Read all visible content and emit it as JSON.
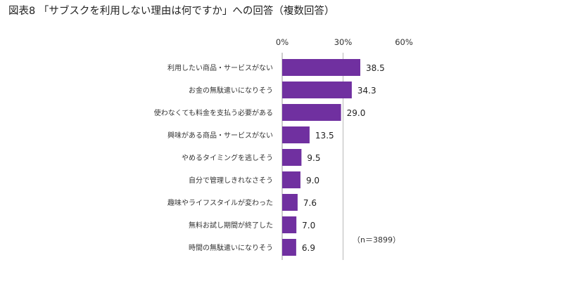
{
  "title": "図表8 「サブスクを利用しない理由は何ですか」への回答（複数回答）",
  "note": "（n＝3899）",
  "chart_data": {
    "type": "bar",
    "orientation": "horizontal",
    "categories": [
      "利用したい商品・サービスがない",
      "お金の無駄遣いになりそう",
      "使わなくても料金を支払う必要がある",
      "興味がある商品・サービスがない",
      "やめるタイミングを逃しそう",
      "自分で管理しきれなさそう",
      "趣味やライフスタイルが変わった",
      "無料お試し期間が終了した",
      "時間の無駄遣いになりそう"
    ],
    "values": [
      38.5,
      34.3,
      29.0,
      13.5,
      9.5,
      9.0,
      7.6,
      7.0,
      6.9
    ],
    "value_labels": [
      "38.5",
      "34.3",
      "29.0",
      "13.5",
      "9.5",
      "9.0",
      "7.6",
      "7.0",
      "6.9"
    ],
    "xticks": [
      "0%",
      "30%",
      "60%"
    ],
    "xlim": [
      0,
      60
    ],
    "gridlines": [
      30
    ],
    "bar_color": "#7030a0",
    "xlabel": "",
    "ylabel": ""
  }
}
